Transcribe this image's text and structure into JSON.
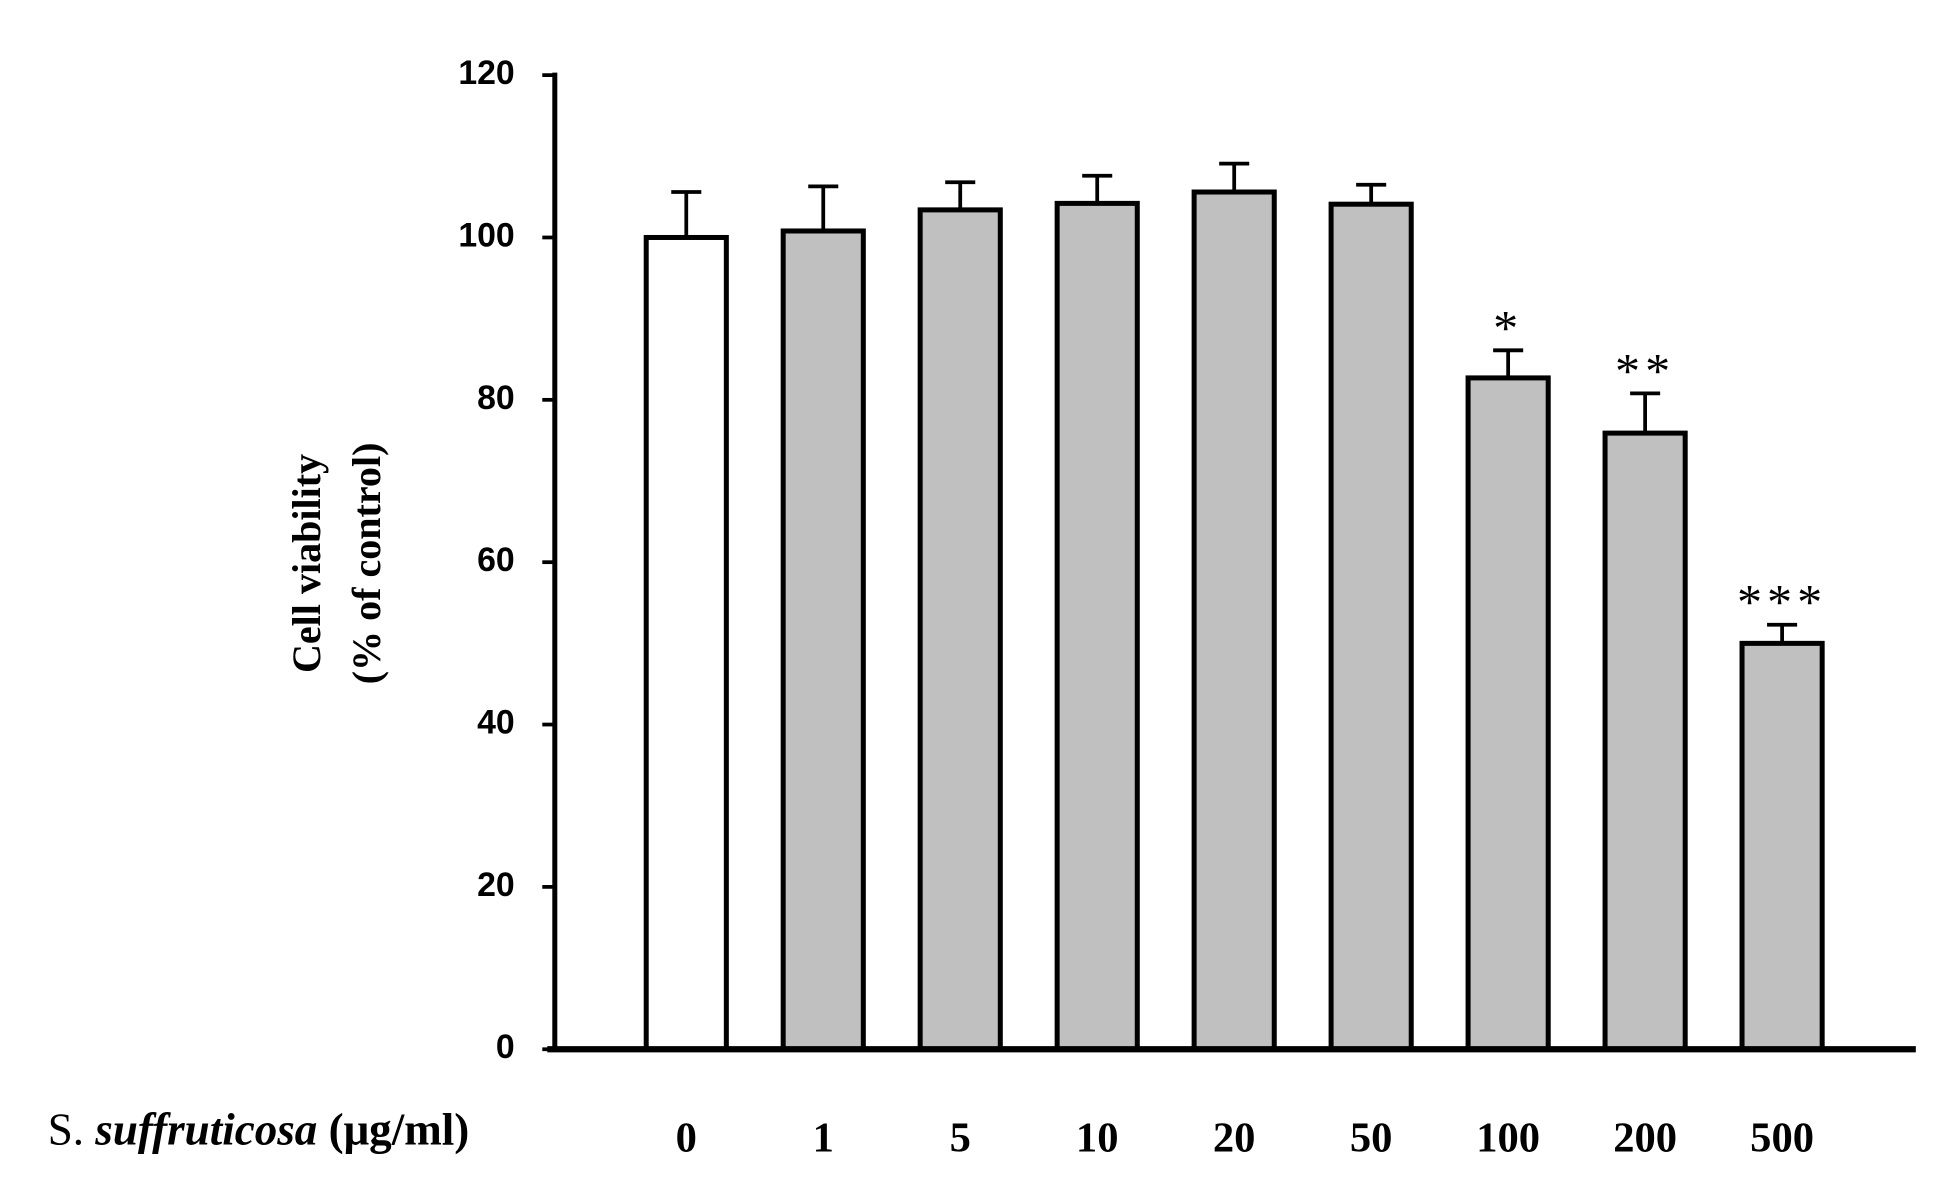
{
  "chart_data": {
    "type": "bar",
    "ylabel": [
      "Cell viability",
      "(% of control)"
    ],
    "xlabel": [
      "S. ",
      "suffruticosa",
      " (μg/ml)"
    ],
    "categories": [
      "0",
      "1",
      "5",
      "10",
      "20",
      "50",
      "100",
      "200",
      "500"
    ],
    "values": [
      100,
      100.8,
      103.4,
      104.2,
      105.6,
      104.1,
      82.7,
      75.9,
      50
    ],
    "errors": [
      5.6,
      5.5,
      3.4,
      3.4,
      3.5,
      2.4,
      3.4,
      4.9,
      2.3
    ],
    "significance": [
      null,
      null,
      null,
      null,
      null,
      null,
      "*",
      "**",
      "***"
    ],
    "colors": [
      "#ffffff",
      "#c0c0c0",
      "#c0c0c0",
      "#c0c0c0",
      "#c0c0c0",
      "#c0c0c0",
      "#c0c0c0",
      "#c0c0c0",
      "#c0c0c0"
    ],
    "ylim": [
      0,
      120
    ],
    "yticks": [
      0,
      20,
      40,
      60,
      80,
      100,
      120
    ]
  }
}
